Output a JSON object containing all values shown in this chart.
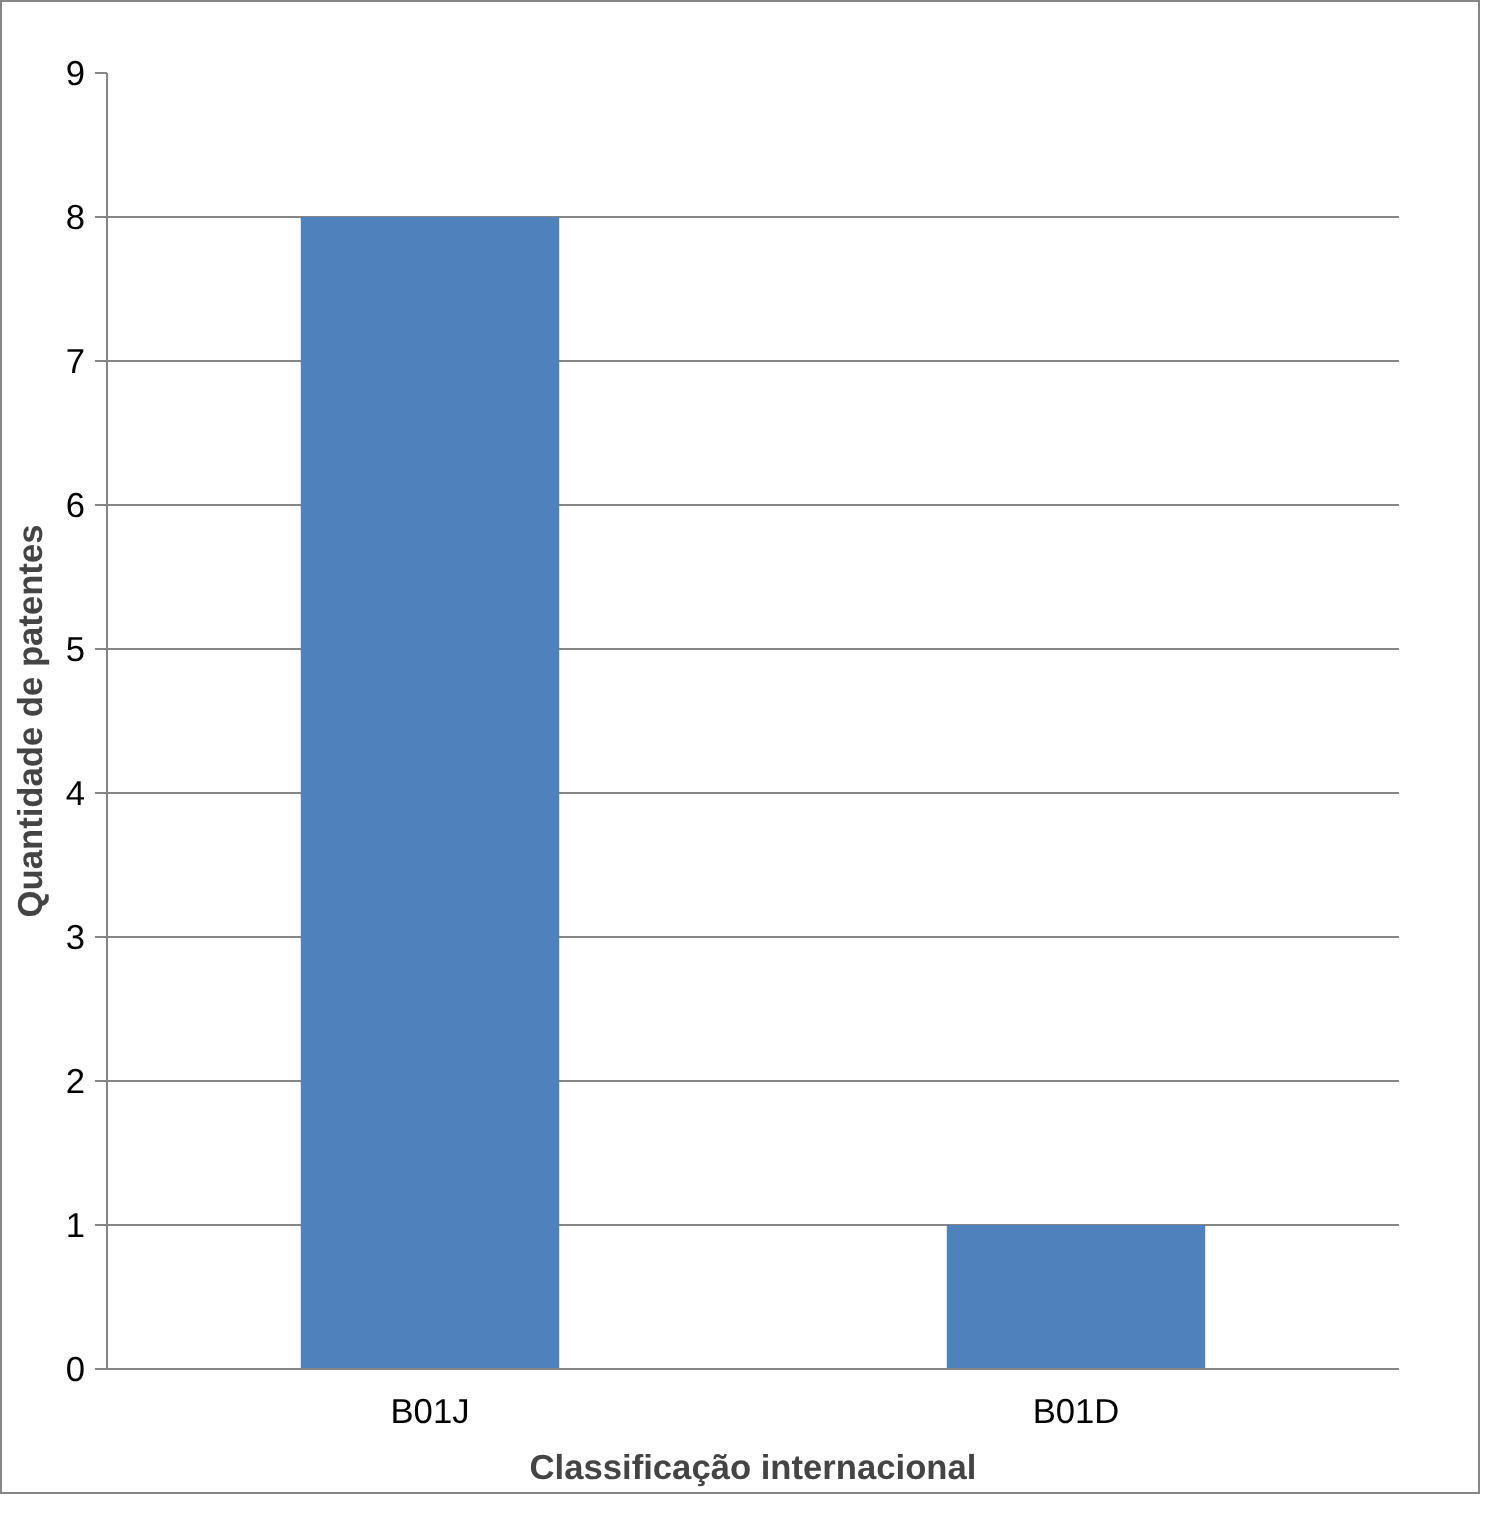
{
  "chart_data": {
    "type": "bar",
    "xlabel": "Classificação internacional",
    "ylabel": "Quantidade de patentes",
    "categories": [
      "B01J",
      "B01D"
    ],
    "values": [
      8,
      1
    ],
    "color": "#4f81bd",
    "ylim": [
      0,
      9
    ],
    "yticks": [
      0,
      1,
      2,
      3,
      4,
      5,
      6,
      7,
      8,
      9
    ],
    "grid": "y"
  }
}
